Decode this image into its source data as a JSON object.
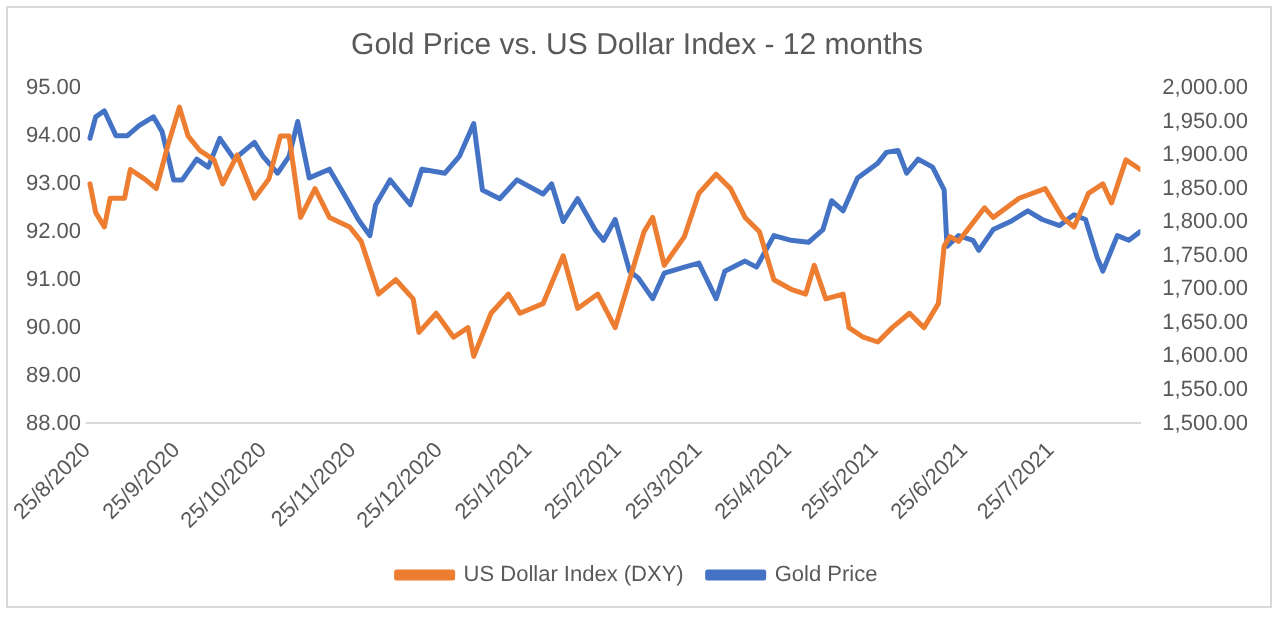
{
  "chart_data": {
    "type": "line",
    "title": "Gold Price vs. US Dollar Index - 12 months",
    "xlim": [
      "2020-08-25",
      "2021-08-25"
    ],
    "xticks": [
      {
        "value": "2020-08-25",
        "label": "25/8/2020"
      },
      {
        "value": "2020-09-25",
        "label": "25/9/2020"
      },
      {
        "value": "2020-10-25",
        "label": "25/10/2020"
      },
      {
        "value": "2020-11-25",
        "label": "25/11/2020"
      },
      {
        "value": "2020-12-25",
        "label": "25/12/2020"
      },
      {
        "value": "2021-01-25",
        "label": "25/1/2021"
      },
      {
        "value": "2021-02-25",
        "label": "25/2/2021"
      },
      {
        "value": "2021-03-25",
        "label": "25/3/2021"
      },
      {
        "value": "2021-04-25",
        "label": "25/4/2021"
      },
      {
        "value": "2021-05-25",
        "label": "25/5/2021"
      },
      {
        "value": "2021-06-25",
        "label": "25/6/2021"
      },
      {
        "value": "2021-07-25",
        "label": "25/7/2021"
      }
    ],
    "ylim": [
      88,
      95
    ],
    "yticks": [
      {
        "value": 88,
        "label": "88.00"
      },
      {
        "value": 89,
        "label": "89.00"
      },
      {
        "value": 90,
        "label": "90.00"
      },
      {
        "value": 91,
        "label": "91.00"
      },
      {
        "value": 92,
        "label": "92.00"
      },
      {
        "value": 93,
        "label": "93.00"
      },
      {
        "value": 94,
        "label": "94.00"
      },
      {
        "value": 95,
        "label": "95.00"
      }
    ],
    "y2lim": [
      1500,
      2000
    ],
    "y2ticks": [
      {
        "value": 1500,
        "label": "1,500.00"
      },
      {
        "value": 1550,
        "label": "1,550.00"
      },
      {
        "value": 1600,
        "label": "1,600.00"
      },
      {
        "value": 1650,
        "label": "1,650.00"
      },
      {
        "value": 1700,
        "label": "1,700.00"
      },
      {
        "value": 1750,
        "label": "1,750.00"
      },
      {
        "value": 1800,
        "label": "1,800.00"
      },
      {
        "value": 1850,
        "label": "1,850.00"
      },
      {
        "value": 1900,
        "label": "1,900.00"
      },
      {
        "value": 1950,
        "label": "1,950.00"
      },
      {
        "value": 2000,
        "label": "2,000.00"
      }
    ],
    "grid": false,
    "legend": "bottom",
    "marker": "none",
    "line_style": "solid",
    "series": [
      {
        "name": "US Dollar Index (DXY)",
        "color": "#ed7d31",
        "x": [
          "2020-08-26",
          "2020-08-28",
          "2020-08-31",
          "2020-09-02",
          "2020-09-07",
          "2020-09-09",
          "2020-09-14",
          "2020-09-18",
          "2020-09-22",
          "2020-09-26",
          "2020-09-29",
          "2020-10-03",
          "2020-10-08",
          "2020-10-11",
          "2020-10-16",
          "2020-10-22",
          "2020-10-27",
          "2020-10-31",
          "2020-11-03",
          "2020-11-07",
          "2020-11-12",
          "2020-11-17",
          "2020-11-24",
          "2020-11-28",
          "2020-12-04",
          "2020-12-10",
          "2020-12-16",
          "2020-12-18",
          "2020-12-24",
          "2020-12-30",
          "2021-01-04",
          "2021-01-06",
          "2021-01-12",
          "2021-01-18",
          "2021-01-22",
          "2021-01-30",
          "2021-02-06",
          "2021-02-11",
          "2021-02-18",
          "2021-02-24",
          "2021-03-01",
          "2021-03-06",
          "2021-03-09",
          "2021-03-13",
          "2021-03-20",
          "2021-03-25",
          "2021-03-31",
          "2021-04-05",
          "2021-04-10",
          "2021-04-15",
          "2021-04-20",
          "2021-04-26",
          "2021-05-01",
          "2021-05-04",
          "2021-05-08",
          "2021-05-14",
          "2021-05-16",
          "2021-05-21",
          "2021-05-26",
          "2021-05-31",
          "2021-06-06",
          "2021-06-11",
          "2021-06-16",
          "2021-06-18",
          "2021-06-20",
          "2021-06-23",
          "2021-07-02",
          "2021-07-05",
          "2021-07-14",
          "2021-07-23",
          "2021-07-29",
          "2021-08-02",
          "2021-08-07",
          "2021-08-12",
          "2021-08-15",
          "2021-08-20",
          "2021-08-25"
        ],
        "values": [
          93.0,
          92.4,
          92.1,
          92.7,
          92.7,
          93.3,
          93.1,
          92.9,
          93.8,
          94.6,
          94.0,
          93.7,
          93.5,
          93.0,
          93.6,
          92.7,
          93.1,
          94.0,
          94.0,
          92.3,
          92.9,
          92.3,
          92.1,
          91.8,
          90.7,
          91.0,
          90.6,
          89.9,
          90.3,
          89.8,
          90.0,
          89.4,
          90.3,
          90.7,
          90.3,
          90.5,
          91.5,
          90.4,
          90.7,
          90.0,
          91.0,
          92.0,
          92.3,
          91.3,
          91.9,
          92.8,
          93.2,
          92.9,
          92.3,
          92.0,
          91.0,
          90.8,
          90.7,
          91.3,
          90.6,
          90.7,
          90.0,
          89.8,
          89.7,
          90.0,
          90.3,
          90.0,
          90.5,
          91.7,
          91.9,
          91.8,
          92.5,
          92.3,
          92.7,
          92.9,
          92.3,
          92.1,
          92.8,
          93.0,
          92.6,
          93.5,
          93.3
        ]
      },
      {
        "name": "Gold Price",
        "color": "#4472c4",
        "axis": "y2",
        "x": [
          "2020-08-26",
          "2020-08-28",
          "2020-08-31",
          "2020-09-04",
          "2020-09-08",
          "2020-09-12",
          "2020-09-17",
          "2020-09-20",
          "2020-09-24",
          "2020-09-27",
          "2020-10-02",
          "2020-10-06",
          "2020-10-10",
          "2020-10-15",
          "2020-10-22",
          "2020-10-25",
          "2020-10-30",
          "2020-11-03",
          "2020-11-06",
          "2020-11-10",
          "2020-11-17",
          "2020-11-22",
          "2020-11-27",
          "2020-12-01",
          "2020-12-03",
          "2020-12-08",
          "2020-12-15",
          "2020-12-19",
          "2020-12-27",
          "2021-01-01",
          "2021-01-06",
          "2021-01-09",
          "2021-01-15",
          "2021-01-21",
          "2021-01-30",
          "2021-02-02",
          "2021-02-06",
          "2021-02-11",
          "2021-02-17",
          "2021-02-20",
          "2021-02-24",
          "2021-03-01",
          "2021-03-04",
          "2021-03-09",
          "2021-03-13",
          "2021-03-20",
          "2021-03-25",
          "2021-03-31",
          "2021-04-03",
          "2021-04-10",
          "2021-04-14",
          "2021-04-20",
          "2021-04-26",
          "2021-05-02",
          "2021-05-07",
          "2021-05-10",
          "2021-05-14",
          "2021-05-19",
          "2021-05-26",
          "2021-05-29",
          "2021-06-02",
          "2021-06-05",
          "2021-06-09",
          "2021-06-14",
          "2021-06-18",
          "2021-06-19",
          "2021-06-23",
          "2021-06-28",
          "2021-06-30",
          "2021-07-05",
          "2021-07-11",
          "2021-07-17",
          "2021-07-22",
          "2021-07-28",
          "2021-08-02",
          "2021-08-06",
          "2021-08-10",
          "2021-08-12",
          "2021-08-17",
          "2021-08-21",
          "2021-08-25"
        ],
        "values": [
          1925,
          1957,
          1966,
          1929,
          1929,
          1944,
          1957,
          1935,
          1863,
          1863,
          1894,
          1882,
          1925,
          1894,
          1919,
          1898,
          1873,
          1898,
          1950,
          1866,
          1879,
          1842,
          1804,
          1780,
          1826,
          1863,
          1826,
          1879,
          1873,
          1898,
          1947,
          1848,
          1835,
          1863,
          1842,
          1857,
          1801,
          1835,
          1789,
          1773,
          1804,
          1727,
          1717,
          1686,
          1724,
          1733,
          1739,
          1686,
          1727,
          1742,
          1733,
          1780,
          1773,
          1770,
          1789,
          1832,
          1817,
          1866,
          1888,
          1904,
          1907,
          1873,
          1894,
          1882,
          1848,
          1764,
          1780,
          1773,
          1758,
          1789,
          1801,
          1817,
          1804,
          1795,
          1811,
          1804,
          1748,
          1727,
          1780,
          1773,
          1786
        ]
      }
    ]
  }
}
